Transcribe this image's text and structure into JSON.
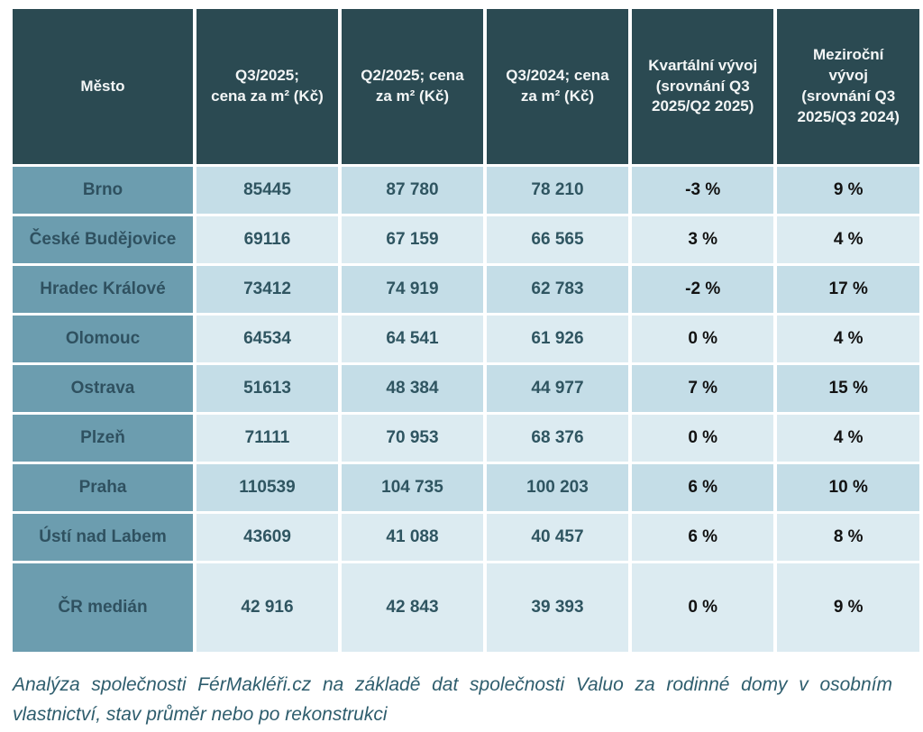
{
  "table": {
    "columns": {
      "city": "Město",
      "q3_2025": "Q3/2025;\ncena za m² (Kč)",
      "q2_2025": "Q2/2025;  cena\nza m² (Kč)",
      "q3_2024": "Q3/2024; cena\nza m² (Kč)",
      "quarterly": "Kvartální vývoj\n(srovnání Q3\n2025/Q2 2025)",
      "yearly": "Meziroční\nvývoj\n(srovnání Q3\n2025/Q3 2024)"
    },
    "rows": [
      {
        "city": "Brno",
        "q3_2025": "85445",
        "q2_2025": "87 780",
        "q3_2024": "78 210",
        "quarterly": "-3 %",
        "yearly": "9 %"
      },
      {
        "city": "České Budějovice",
        "q3_2025": "69116",
        "q2_2025": "67 159",
        "q3_2024": "66 565",
        "quarterly": "3 %",
        "yearly": "4 %"
      },
      {
        "city": "Hradec Králové",
        "q3_2025": "73412",
        "q2_2025": "74 919",
        "q3_2024": "62 783",
        "quarterly": "-2 %",
        "yearly": "17 %"
      },
      {
        "city": "Olomouc",
        "q3_2025": "64534",
        "q2_2025": "64 541",
        "q3_2024": "61 926",
        "quarterly": "0 %",
        "yearly": "4 %"
      },
      {
        "city": "Ostrava",
        "q3_2025": "51613",
        "q2_2025": "48 384",
        "q3_2024": "44 977",
        "quarterly": "7 %",
        "yearly": "15 %"
      },
      {
        "city": "Plzeň",
        "q3_2025": "71111",
        "q2_2025": "70 953",
        "q3_2024": "68 376",
        "quarterly": "0 %",
        "yearly": "4 %"
      },
      {
        "city": "Praha",
        "q3_2025": "110539",
        "q2_2025": "104 735",
        "q3_2024": "100 203",
        "quarterly": "6 %",
        "yearly": "10 %"
      },
      {
        "city": "Ústí nad Labem",
        "q3_2025": "43609",
        "q2_2025": "41 088",
        "q3_2024": "40 457",
        "quarterly": "6 %",
        "yearly": "8 %"
      },
      {
        "city": "ČR medián",
        "q3_2025": "42 916",
        "q2_2025": "42 843",
        "q3_2024": "39 393",
        "quarterly": "0 %",
        "yearly": "9 %"
      }
    ]
  },
  "footer": {
    "line1": "Analýza společnosti FérMakléři.cz na základě dat společnosti Valuo za rodinné domy v osobním",
    "line2": "vlastnictví, stav průměr nebo po rekonstrukci"
  },
  "colors": {
    "header_bg": "#2b4a52",
    "city_column_bg": "#6c9daf",
    "row_dark_bg": "#c4dde7",
    "row_light_bg": "#dcebf1",
    "price_text": "#2f5561",
    "percent_text": "#121212",
    "footer_text": "#2e5d6d"
  }
}
